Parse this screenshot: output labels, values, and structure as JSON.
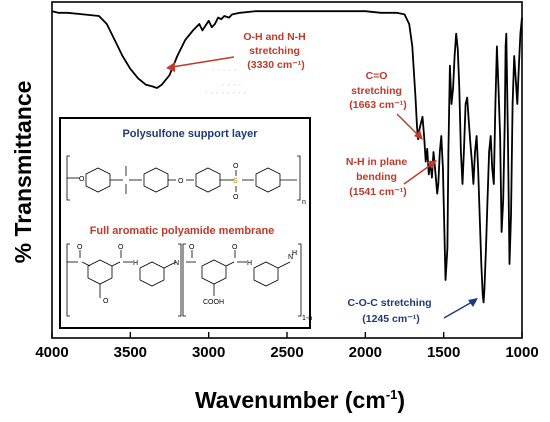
{
  "chart_data": {
    "type": "line",
    "title": "",
    "xlabel": "Wavenumber (cm",
    "xlabel_sup": "-1",
    "xlabel_tail": ")",
    "ylabel": "% Transmittance",
    "xlim": [
      4000,
      1000
    ],
    "x_reversed": true,
    "xticks": [
      "4000",
      "3500",
      "3000",
      "2500",
      "2000",
      "1500",
      "1000"
    ],
    "y_ticks_shown": false,
    "grid": false,
    "series": [
      {
        "x": [
          4000,
          3960,
          3900,
          3800,
          3700,
          3650,
          3600,
          3550,
          3500,
          3450,
          3400,
          3360,
          3330,
          3300,
          3250,
          3200,
          3150,
          3100,
          3060,
          3040,
          3000,
          2980,
          2960,
          2940,
          2920,
          2900,
          2870,
          2850,
          2800,
          2700,
          2600,
          2500,
          2400,
          2300,
          2200,
          2100,
          2000,
          1900,
          1800,
          1750,
          1720,
          1700,
          1690,
          1680,
          1670,
          1663,
          1655,
          1645,
          1635,
          1625,
          1615,
          1605,
          1595,
          1585,
          1575,
          1565,
          1555,
          1548,
          1541,
          1534,
          1525,
          1515,
          1505,
          1495,
          1488,
          1482,
          1476,
          1470,
          1460,
          1450,
          1440,
          1430,
          1420,
          1410,
          1400,
          1390,
          1380,
          1370,
          1360,
          1350,
          1340,
          1330,
          1320,
          1310,
          1300,
          1290,
          1280,
          1270,
          1260,
          1250,
          1245,
          1240,
          1230,
          1220,
          1210,
          1200,
          1190,
          1180,
          1170,
          1160,
          1150,
          1140,
          1130,
          1120,
          1110,
          1105,
          1100,
          1090,
          1080,
          1070,
          1060,
          1050,
          1040,
          1030,
          1020,
          1010,
          1000
        ],
        "y": [
          0.99,
          0.985,
          0.985,
          0.98,
          0.975,
          0.95,
          0.9,
          0.85,
          0.81,
          0.78,
          0.76,
          0.755,
          0.75,
          0.76,
          0.79,
          0.85,
          0.9,
          0.93,
          0.95,
          0.93,
          0.96,
          0.94,
          0.95,
          0.97,
          0.965,
          0.975,
          0.97,
          0.98,
          0.985,
          0.99,
          0.99,
          0.99,
          0.99,
          0.99,
          0.99,
          0.99,
          0.99,
          0.985,
          0.985,
          0.98,
          0.95,
          0.88,
          0.8,
          0.72,
          0.63,
          0.59,
          0.62,
          0.64,
          0.66,
          0.6,
          0.52,
          0.56,
          0.48,
          0.52,
          0.47,
          0.55,
          0.5,
          0.46,
          0.42,
          0.45,
          0.55,
          0.6,
          0.5,
          0.3,
          0.15,
          0.2,
          0.25,
          0.55,
          0.82,
          0.7,
          0.75,
          0.85,
          0.92,
          0.87,
          0.75,
          0.55,
          0.45,
          0.56,
          0.7,
          0.72,
          0.65,
          0.58,
          0.52,
          0.45,
          0.55,
          0.6,
          0.5,
          0.35,
          0.2,
          0.1,
          0.08,
          0.12,
          0.25,
          0.4,
          0.55,
          0.6,
          0.5,
          0.45,
          0.7,
          0.88,
          0.75,
          0.6,
          0.3,
          0.4,
          0.65,
          0.88,
          0.92,
          0.6,
          0.2,
          0.35,
          0.7,
          0.85,
          0.78,
          0.7,
          0.82,
          0.92,
          0.97
        ]
      }
    ],
    "annotations": [
      {
        "lines": [
          "O-H and N-H",
          "stretching",
          "(3330 cm⁻¹)"
        ],
        "color": "#c0392b",
        "x": 3330
      },
      {
        "lines": [
          "C=O",
          "stretching",
          "(1663 cm⁻¹)"
        ],
        "color": "#c0392b",
        "x": 1663
      },
      {
        "lines": [
          "N-H in plane",
          "bending",
          "(1541 cm⁻¹)"
        ],
        "color": "#c0392b",
        "x": 1541
      },
      {
        "lines": [
          "C-O-C stretching",
          "(1245 cm⁻¹)"
        ],
        "color": "#1f3a7a",
        "x": 1245
      }
    ],
    "inset": {
      "title_top": "Polysulfone support layer",
      "title_bottom": "Full aromatic polyamide membrane",
      "title_top_color": "#1f3a7a",
      "title_bottom_color": "#c0392b",
      "labels": {
        "o": "O",
        "s": "S",
        "n": "n",
        "n1": "1-n",
        "h": "H",
        "nh": "N",
        "cooh": "COOH"
      }
    }
  }
}
